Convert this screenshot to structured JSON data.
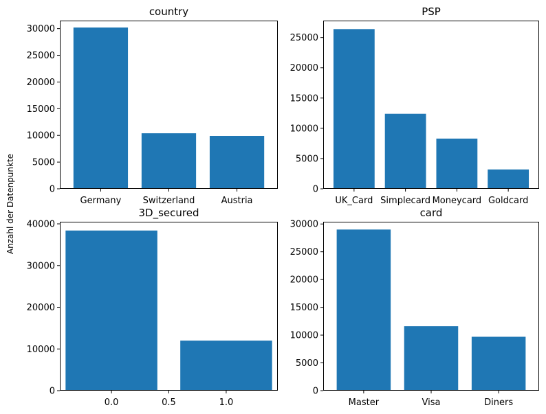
{
  "figure": {
    "ylabel": "Anzahl der Datenpunkte"
  },
  "chart_data": [
    {
      "type": "bar",
      "title": "country",
      "categories": [
        "Germany",
        "Switzerland",
        "Austria"
      ],
      "values": [
        30200,
        10400,
        9900
      ],
      "ylim": [
        0,
        31500
      ],
      "yticks": [
        0,
        5000,
        10000,
        15000,
        20000,
        25000,
        30000
      ],
      "ytick_labels": [
        "0",
        "5000",
        "10000",
        "15000",
        "20000",
        "25000",
        "30000"
      ],
      "bar_color": "#1f77b4",
      "grid": false
    },
    {
      "type": "bar",
      "title": "PSP",
      "categories": [
        "UK_Card",
        "Simplecard",
        "Moneycard",
        "Goldcard"
      ],
      "values": [
        26400,
        12400,
        8300,
        3200
      ],
      "ylim": [
        0,
        27800
      ],
      "yticks": [
        0,
        5000,
        10000,
        15000,
        20000,
        25000
      ],
      "ytick_labels": [
        "0",
        "5000",
        "10000",
        "15000",
        "20000",
        "25000"
      ],
      "bar_color": "#1f77b4",
      "grid": false
    },
    {
      "type": "bar",
      "title": "3D_secured",
      "x": [
        0,
        1
      ],
      "values": [
        38400,
        12000
      ],
      "bar_width": 0.8,
      "xlim": [
        -0.45,
        1.45
      ],
      "xticks": [
        0.0,
        0.5,
        1.0
      ],
      "xtick_labels": [
        "0.0",
        "0.5",
        "1.0"
      ],
      "ylim": [
        0,
        40500
      ],
      "yticks": [
        0,
        10000,
        20000,
        30000,
        40000
      ],
      "ytick_labels": [
        "0",
        "10000",
        "20000",
        "30000",
        "40000"
      ],
      "bar_color": "#1f77b4",
      "grid": false
    },
    {
      "type": "bar",
      "title": "card",
      "categories": [
        "Master",
        "Visa",
        "Diners"
      ],
      "values": [
        29000,
        11600,
        9700
      ],
      "ylim": [
        0,
        30400
      ],
      "yticks": [
        0,
        5000,
        10000,
        15000,
        20000,
        25000,
        30000
      ],
      "ytick_labels": [
        "0",
        "5000",
        "10000",
        "15000",
        "20000",
        "25000",
        "30000"
      ],
      "bar_color": "#1f77b4",
      "grid": false
    }
  ]
}
